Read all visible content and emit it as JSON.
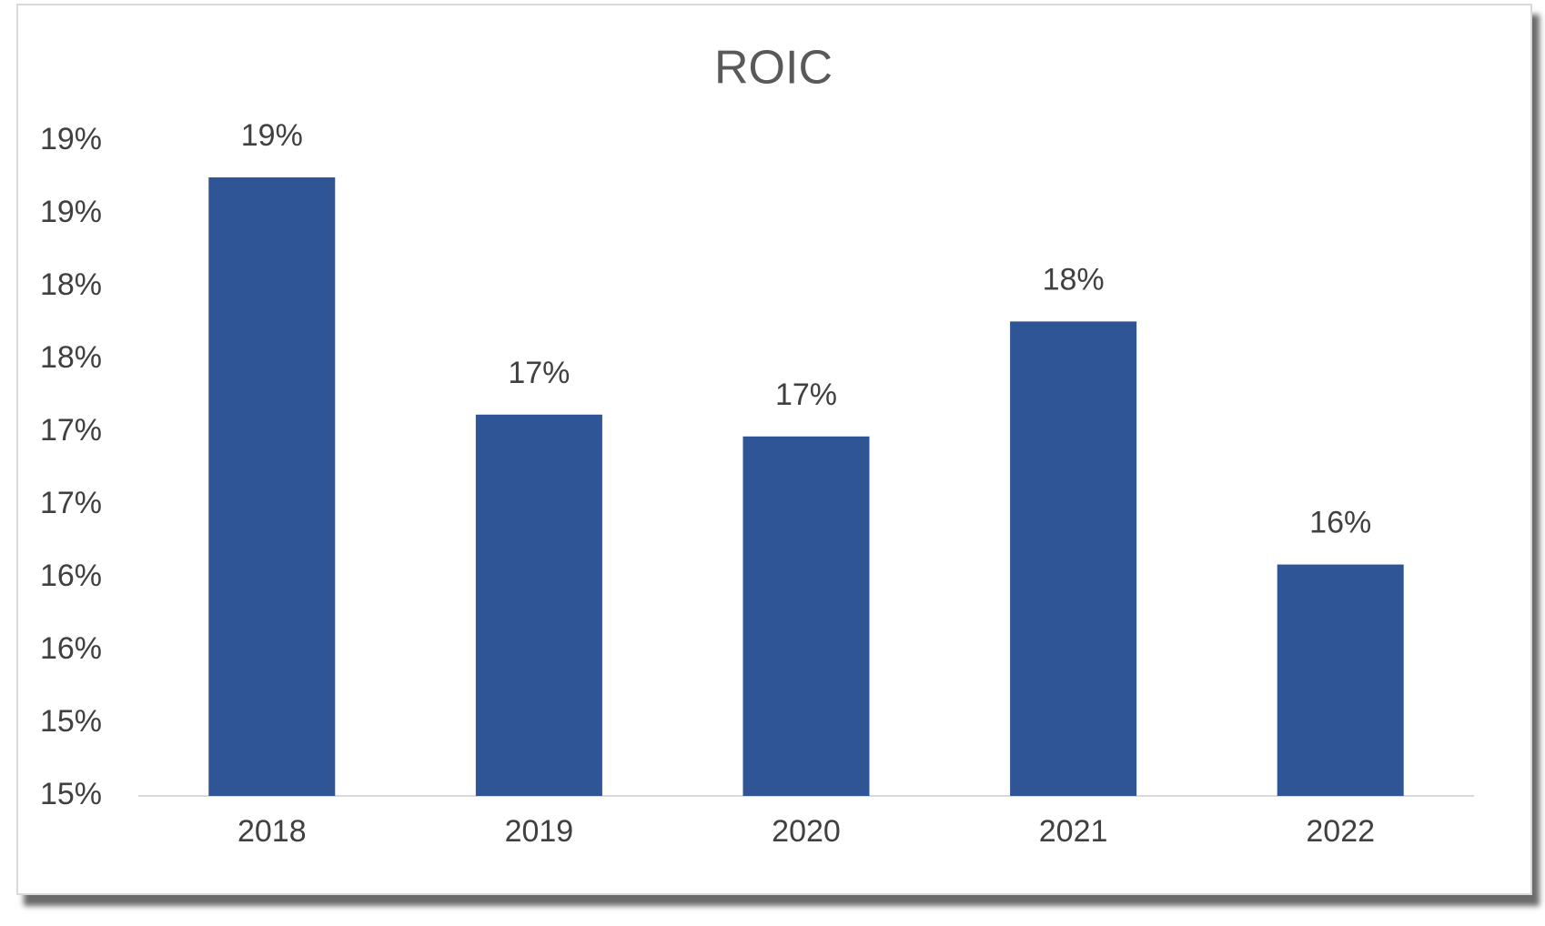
{
  "chart_data": {
    "type": "bar",
    "title": "ROIC",
    "categories": [
      "2018",
      "2019",
      "2020",
      "2021",
      "2022"
    ],
    "values": [
      18.85,
      17.22,
      17.07,
      17.86,
      16.19
    ],
    "value_labels": [
      "19%",
      "17%",
      "17%",
      "18%",
      "16%"
    ],
    "color": "#2f5597",
    "ylim": [
      14.6,
      19.1
    ],
    "yticks": [
      {
        "value": 14.6,
        "label": "15%"
      },
      {
        "value": 15.1,
        "label": "15%"
      },
      {
        "value": 15.6,
        "label": "16%"
      },
      {
        "value": 16.1,
        "label": "16%"
      },
      {
        "value": 16.6,
        "label": "17%"
      },
      {
        "value": 17.1,
        "label": "17%"
      },
      {
        "value": 17.6,
        "label": "18%"
      },
      {
        "value": 18.1,
        "label": "18%"
      },
      {
        "value": 18.6,
        "label": "19%"
      },
      {
        "value": 19.1,
        "label": "19%"
      }
    ],
    "grid": false
  }
}
